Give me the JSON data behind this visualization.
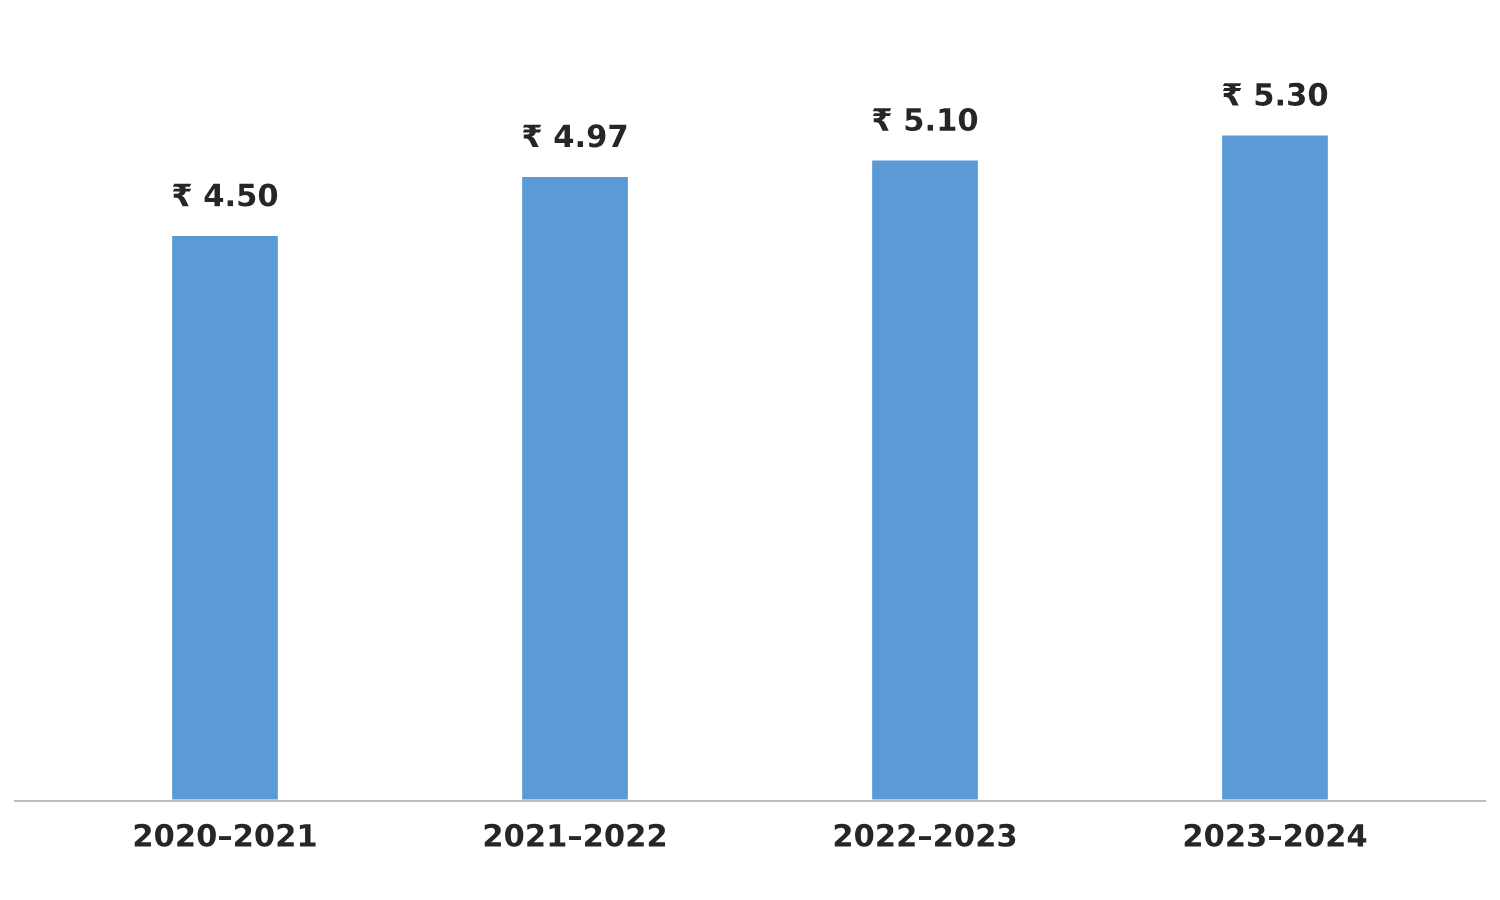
{
  "chart_data": {
    "type": "bar",
    "categories": [
      "2020–2021",
      "2021–2022",
      "2022–2023",
      "2023–2024"
    ],
    "values": [
      4.5,
      4.97,
      5.1,
      5.3
    ],
    "value_labels": [
      "₹ 4.50",
      "₹ 4.97",
      "₹ 5.10",
      "₹ 5.30"
    ],
    "color": "#5b9bd5",
    "tick_labels": "x",
    "legend": false
  }
}
